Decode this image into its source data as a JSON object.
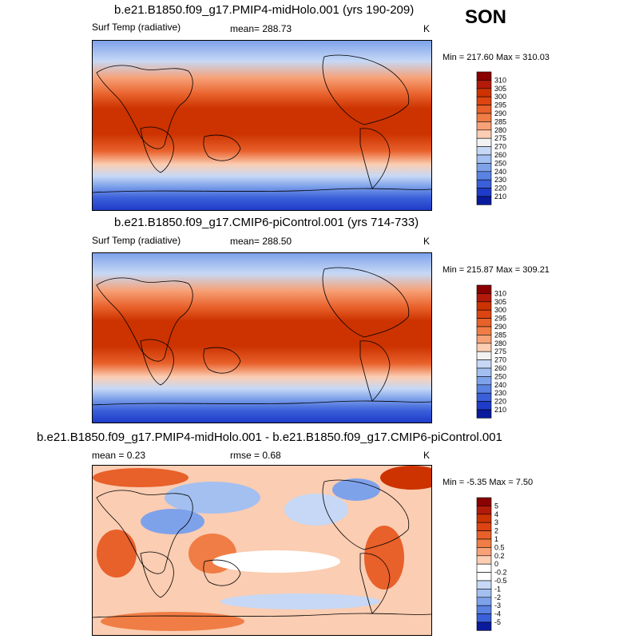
{
  "season": "SON",
  "panels": [
    {
      "title": "b.e21.B1850.f09_g17.PMIP4-midHolo.001 (yrs 190-209)",
      "left_label": "Surf Temp (radiative)",
      "center_label": "mean= 288.73",
      "units": "K",
      "minmax": "Min = 217.60 Max = 310.03"
    },
    {
      "title": "b.e21.B1850.f09_g17.CMIP6-piControl.001 (yrs 714-733)",
      "left_label": "Surf Temp (radiative)",
      "center_label": "mean= 288.50",
      "units": "K",
      "minmax": "Min = 215.87 Max = 309.21"
    },
    {
      "title": "b.e21.B1850.f09_g17.PMIP4-midHolo.001 - b.e21.B1850.f09_g17.CMIP6-piControl.001",
      "left_label": "mean =   0.23",
      "center_label": "rmse =   0.68",
      "units": "K",
      "minmax": "Min =  -5.35 Max =   7.50"
    }
  ],
  "chart_data": [
    {
      "type": "heatmap",
      "title": "b.e21.B1850.f09_g17.PMIP4-midHolo.001 (yrs 190-209)",
      "variable": "Surf Temp (radiative)",
      "units": "K",
      "mean": 288.73,
      "min": 217.6,
      "max": 310.03,
      "colorbar_levels": [
        310,
        305,
        300,
        295,
        290,
        285,
        280,
        275,
        270,
        260,
        250,
        240,
        230,
        220,
        210
      ]
    },
    {
      "type": "heatmap",
      "title": "b.e21.B1850.f09_g17.CMIP6-piControl.001 (yrs 714-733)",
      "variable": "Surf Temp (radiative)",
      "units": "K",
      "mean": 288.5,
      "min": 215.87,
      "max": 309.21,
      "colorbar_levels": [
        310,
        305,
        300,
        295,
        290,
        285,
        280,
        275,
        270,
        260,
        250,
        240,
        230,
        220,
        210
      ]
    },
    {
      "type": "heatmap",
      "title": "b.e21.B1850.f09_g17.PMIP4-midHolo.001 - b.e21.B1850.f09_g17.CMIP6-piControl.001",
      "units": "K",
      "mean": 0.23,
      "rmse": 0.68,
      "min": -5.35,
      "max": 7.5,
      "colorbar_levels": [
        "5",
        "4",
        "3",
        "2",
        "1",
        "0.5",
        "0.2",
        "0",
        "-0.2",
        "-0.5",
        "-1",
        "-2",
        "-3",
        "-4",
        "-5"
      ]
    }
  ],
  "colors": {
    "abs_scale": [
      "#8b0000",
      "#b31a0a",
      "#cc3300",
      "#dd4411",
      "#e8602a",
      "#f07d45",
      "#f7a177",
      "#fbcdb2",
      "#f2f2f2",
      "#c6d8f5",
      "#a3c0f0",
      "#7ea2ea",
      "#5a82e3",
      "#3a5fd9",
      "#1f3bc9",
      "#0a1a9c"
    ],
    "diff_scale": [
      "#8b0000",
      "#b31a0a",
      "#cc3300",
      "#dd4411",
      "#e8602a",
      "#f07d45",
      "#f7a177",
      "#fbcdb2",
      "#ffffff",
      "#ffffff",
      "#c6d8f5",
      "#a3c0f0",
      "#7ea2ea",
      "#5a82e3",
      "#3a5fd9",
      "#0a1a9c"
    ]
  }
}
